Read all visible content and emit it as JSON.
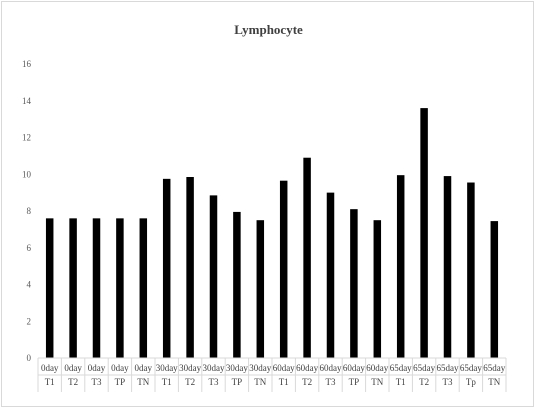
{
  "chart_data": {
    "type": "bar",
    "title": "Lymphocyte",
    "xlabel": "",
    "ylabel": "",
    "ylim": [
      0,
      16
    ],
    "yticks": [
      0,
      2,
      4,
      6,
      8,
      10,
      12,
      14,
      16
    ],
    "grid": false,
    "legend": "none",
    "bar_color": "#000000",
    "categories": [
      {
        "day": "0day",
        "group": "T1",
        "value": 7.6
      },
      {
        "day": "0day",
        "group": "T2",
        "value": 7.6
      },
      {
        "day": "0day",
        "group": "T3",
        "value": 7.6
      },
      {
        "day": "0day",
        "group": "TP",
        "value": 7.6
      },
      {
        "day": "0day",
        "group": "TN",
        "value": 7.6
      },
      {
        "day": "30day",
        "group": "T1",
        "value": 9.75
      },
      {
        "day": "30day",
        "group": "T2",
        "value": 9.85
      },
      {
        "day": "30day",
        "group": "T3",
        "value": 8.85
      },
      {
        "day": "30day",
        "group": "TP",
        "value": 7.95
      },
      {
        "day": "30day",
        "group": "TN",
        "value": 7.5
      },
      {
        "day": "60day",
        "group": "T1",
        "value": 9.65
      },
      {
        "day": "60day",
        "group": "T2",
        "value": 10.9
      },
      {
        "day": "60day",
        "group": "T3",
        "value": 9.0
      },
      {
        "day": "60day",
        "group": "TP",
        "value": 8.1
      },
      {
        "day": "60day",
        "group": "TN",
        "value": 7.5
      },
      {
        "day": "65day",
        "group": "T1",
        "value": 9.95
      },
      {
        "day": "65day",
        "group": "T2",
        "value": 13.6
      },
      {
        "day": "65day",
        "group": "T3",
        "value": 9.9
      },
      {
        "day": "65day",
        "group": "Tp",
        "value": 9.55
      },
      {
        "day": "65day",
        "group": "TN",
        "value": 7.45
      }
    ]
  }
}
